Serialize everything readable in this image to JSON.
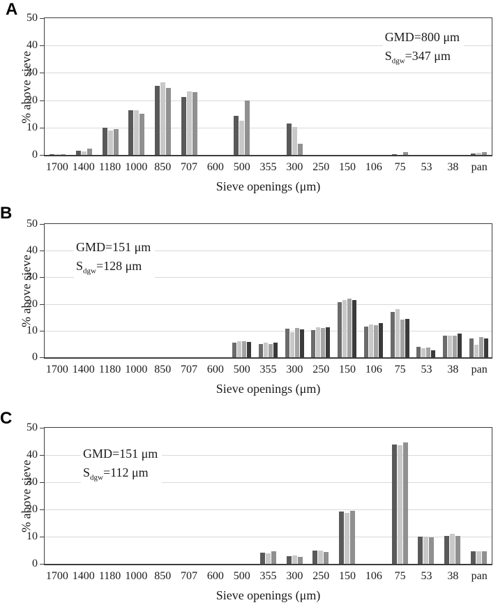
{
  "chart_data": [
    {
      "type": "bar",
      "panel": "A",
      "xlabel": "Sieve openings (μm)",
      "ylabel": "% above sieve",
      "ylim": [
        0,
        50
      ],
      "yticks": [
        0,
        10,
        20,
        30,
        40,
        50
      ],
      "grid": "horizontal",
      "legend": "none",
      "annotation": {
        "line1": "GMD=800 μm",
        "s_base": "S",
        "s_sub": "dgw",
        "s_rest": "=347 μm",
        "side": "right"
      },
      "categories": [
        "1700",
        "1400",
        "1180",
        "1000",
        "850",
        "707",
        "600",
        "500",
        "355",
        "300",
        "250",
        "150",
        "106",
        "75",
        "53",
        "38",
        "pan"
      ],
      "series": [
        {
          "name": "series-1",
          "color": "#595959",
          "values": [
            0.2,
            1.6,
            10.0,
            16.4,
            25.2,
            21.1,
            0,
            14.4,
            0,
            11.4,
            0,
            0,
            0,
            0.3,
            0,
            0,
            0.4
          ]
        },
        {
          "name": "series-2",
          "color": "#c8c8c8",
          "values": [
            0.2,
            1.4,
            8.9,
            16.4,
            26.6,
            23.2,
            0,
            12.4,
            0,
            10.1,
            0,
            0,
            0,
            0,
            0,
            0,
            0.8
          ]
        },
        {
          "name": "series-3",
          "color": "#909090",
          "values": [
            0.2,
            2.4,
            9.4,
            15.1,
            24.5,
            23.0,
            0,
            20.0,
            0,
            4.0,
            0,
            0,
            0,
            1.0,
            0,
            0,
            1.0
          ]
        }
      ]
    },
    {
      "type": "bar",
      "panel": "B",
      "xlabel": "Sieve openings (μm)",
      "ylabel": "% above sieve",
      "ylim": [
        0,
        50
      ],
      "yticks": [
        0,
        10,
        20,
        30,
        40,
        50
      ],
      "grid": "horizontal",
      "legend": "none",
      "annotation": {
        "line1": "GMD=151 μm",
        "s_base": "S",
        "s_sub": "dgw",
        "s_rest": "=128 μm",
        "side": "left"
      },
      "categories": [
        "1700",
        "1400",
        "1180",
        "1000",
        "850",
        "707",
        "600",
        "500",
        "355",
        "300",
        "250",
        "150",
        "106",
        "75",
        "53",
        "38",
        "pan"
      ],
      "series": [
        {
          "name": "series-1",
          "color": "#6b6b6b",
          "values": [
            0,
            0,
            0,
            0,
            0,
            0,
            0,
            5.5,
            5.0,
            10.8,
            10.1,
            20.8,
            11.5,
            16.9,
            4.0,
            8.2,
            7.2
          ]
        },
        {
          "name": "series-2",
          "color": "#c8c8c8",
          "values": [
            0,
            0,
            0,
            0,
            0,
            0,
            0,
            5.9,
            5.5,
            9.4,
            11.3,
            21.5,
            12.2,
            18.1,
            3.3,
            8.0,
            4.8
          ]
        },
        {
          "name": "series-3",
          "color": "#a3a3a3",
          "values": [
            0,
            0,
            0,
            0,
            0,
            0,
            0,
            6.1,
            4.9,
            11.0,
            11.0,
            21.9,
            12.0,
            14.2,
            3.6,
            8.1,
            7.6
          ]
        },
        {
          "name": "series-4",
          "color": "#3a3a3a",
          "values": [
            0,
            0,
            0,
            0,
            0,
            0,
            0,
            5.7,
            5.4,
            10.6,
            11.3,
            21.5,
            12.9,
            14.4,
            2.6,
            9.0,
            7.0
          ]
        }
      ]
    },
    {
      "type": "bar",
      "panel": "C",
      "xlabel": "Sieve openings (μm)",
      "ylabel": "% above sieve",
      "ylim": [
        0,
        50
      ],
      "yticks": [
        0,
        10,
        20,
        30,
        40,
        50
      ],
      "grid": "horizontal",
      "legend": "none",
      "annotation": {
        "line1": "GMD=151 μm",
        "s_base": "S",
        "s_sub": "dgw",
        "s_rest": "=112 μm",
        "side": "left"
      },
      "categories": [
        "1700",
        "1400",
        "1180",
        "1000",
        "850",
        "707",
        "600",
        "500",
        "355",
        "300",
        "250",
        "150",
        "106",
        "75",
        "53",
        "38",
        "pan"
      ],
      "series": [
        {
          "name": "series-1",
          "color": "#595959",
          "values": [
            0,
            0,
            0,
            0,
            0,
            0,
            0,
            0,
            4.2,
            2.8,
            4.8,
            19.3,
            0,
            43.9,
            10.0,
            10.3,
            4.7
          ]
        },
        {
          "name": "series-2",
          "color": "#c8c8c8",
          "values": [
            0,
            0,
            0,
            0,
            0,
            0,
            0,
            0,
            3.9,
            3.2,
            4.8,
            18.7,
            0,
            43.7,
            10.0,
            11.0,
            4.7
          ]
        },
        {
          "name": "series-3",
          "color": "#909090",
          "values": [
            0,
            0,
            0,
            0,
            0,
            0,
            0,
            0,
            4.5,
            2.6,
            4.3,
            19.4,
            0,
            44.7,
            9.7,
            10.3,
            4.7
          ]
        }
      ]
    }
  ]
}
